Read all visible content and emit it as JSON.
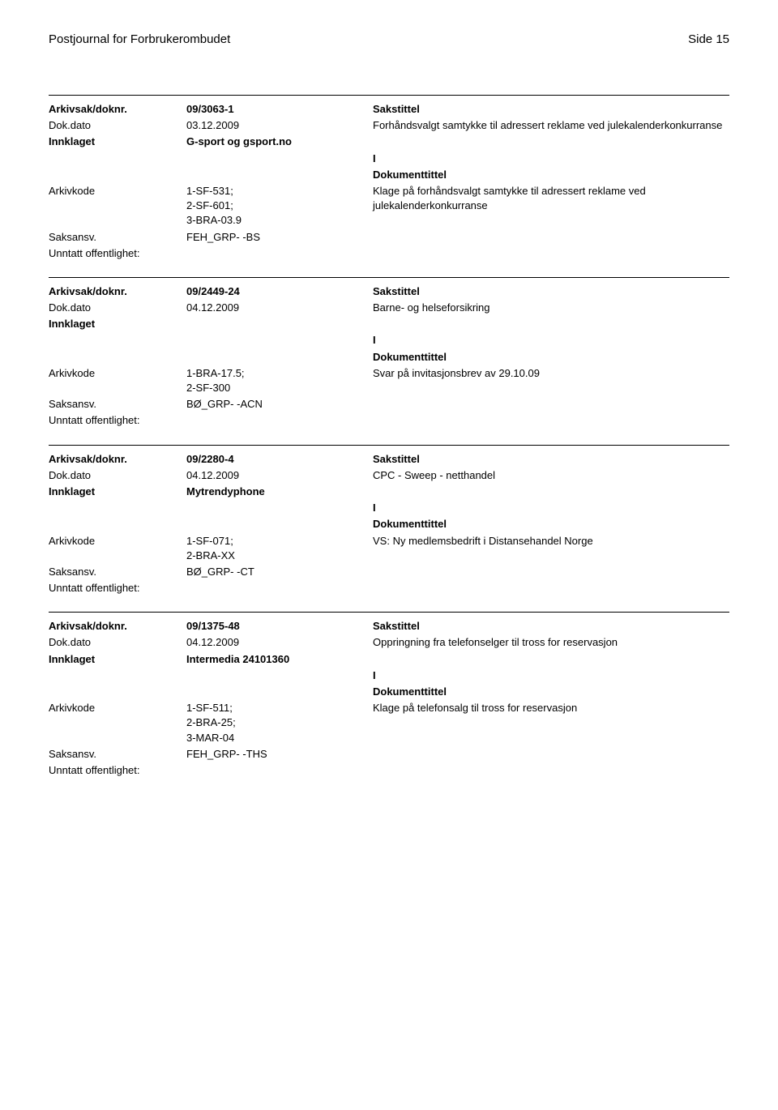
{
  "header": {
    "title": "Postjournal for Forbrukerombudet",
    "page": "Side 15"
  },
  "labels": {
    "arkivsak": "Arkivsak/doknr.",
    "dokdato": "Dok.dato",
    "innklaget": "Innklaget",
    "arkivkode": "Arkivkode",
    "saksansv": "Saksansv.",
    "unntatt": "Unntatt offentlighet:",
    "sakstittel": "Sakstittel",
    "dokumenttittel": "Dokumenttittel"
  },
  "entries": [
    {
      "doknr": "09/3063-1",
      "dokdato": "03.12.2009",
      "sakstittel": "Forhåndsvalgt samtykke til adressert reklame ved julekalenderkonkurranse",
      "innklaget": "G-sport og gsport.no",
      "doc_type": "I",
      "arkivkode": "1-SF-531; 2-SF-601; 3-BRA-03.9",
      "dokumenttittel": "Klage på forhåndsvalgt samtykke til adressert reklame ved julekalenderkonkurranse",
      "saksansv": "FEH_GRP- -BS"
    },
    {
      "doknr": "09/2449-24",
      "dokdato": "04.12.2009",
      "sakstittel": "Barne- og helseforsikring",
      "innklaget": "",
      "doc_type": "I",
      "arkivkode": "1-BRA-17.5; 2-SF-300",
      "dokumenttittel": "Svar på invitasjonsbrev av 29.10.09",
      "saksansv": "BØ_GRP- -ACN"
    },
    {
      "doknr": "09/2280-4",
      "dokdato": "04.12.2009",
      "sakstittel": "CPC - Sweep - netthandel",
      "innklaget": "Mytrendyphone",
      "doc_type": "I",
      "arkivkode": "1-SF-071; 2-BRA-XX",
      "dokumenttittel": "VS: Ny medlemsbedrift i Distansehandel Norge",
      "saksansv": "BØ_GRP- -CT"
    },
    {
      "doknr": "09/1375-48",
      "dokdato": "04.12.2009",
      "sakstittel": "Oppringning fra telefonselger til tross for reservasjon",
      "innklaget": "Intermedia 24101360",
      "doc_type": "I",
      "arkivkode": "1-SF-511; 2-BRA-25; 3-MAR-04",
      "dokumenttittel": "Klage på telefonsalg til tross for reservasjon",
      "saksansv": "FEH_GRP- -THS"
    }
  ]
}
